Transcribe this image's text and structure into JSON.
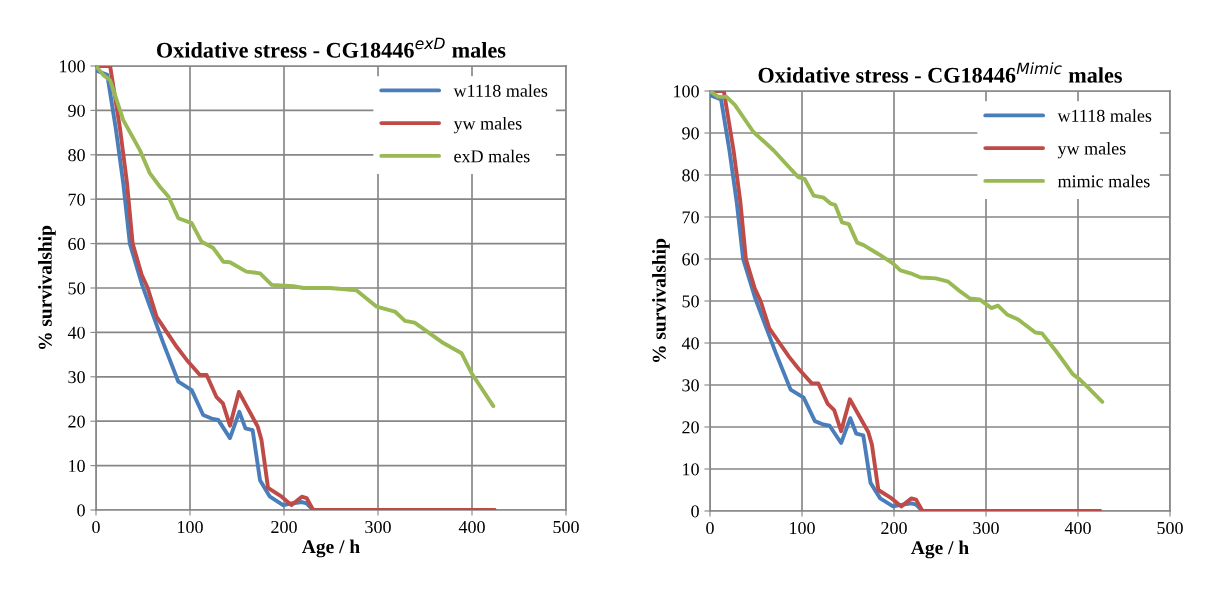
{
  "chart_data": [
    {
      "type": "line",
      "title": "Oxidative stress - CG18446$^{exD}$ males",
      "xlabel": "Age / h",
      "ylabel": "% survivalship",
      "xlim": [
        0,
        500
      ],
      "xticks": [
        0,
        100,
        200,
        300,
        400,
        500
      ],
      "ylim": [
        0,
        100
      ],
      "yticks": [
        0,
        10,
        20,
        30,
        40,
        50,
        60,
        70,
        80,
        90,
        100
      ],
      "grid": true,
      "legend": "top right",
      "line_style": "solid",
      "marker": "none",
      "series": [
        {
          "name": "w1118 males",
          "color": "#4a7ebb",
          "x": [
            0,
            12,
            21,
            29,
            36,
            48.6,
            57.4,
            71.6,
            87.6,
            101.8,
            114,
            123,
            130,
            142.5,
            152.5,
            159,
            166.6,
            174.5,
            185,
            199,
            206,
            219,
            224,
            231,
            424
          ],
          "values": [
            99,
            98,
            86,
            73.6,
            60,
            51,
            45.8,
            37.6,
            28.9,
            27,
            21.4,
            20.6,
            20.3,
            16.2,
            22.1,
            18.4,
            18,
            6.7,
            3,
            1.1,
            1.4,
            1.8,
            1.5,
            0,
            0
          ]
        },
        {
          "name": "yw males",
          "color": "#be4b48",
          "x": [
            0,
            15,
            25.5,
            33,
            39,
            48.6,
            55,
            64.5,
            86,
            96.5,
            110.6,
            117.7,
            128,
            135,
            142.5,
            152,
            172,
            176,
            183,
            197.5,
            208,
            219,
            224,
            231,
            424
          ],
          "values": [
            100,
            100,
            86,
            73.6,
            60,
            53,
            50,
            43.5,
            36.7,
            33.8,
            30.4,
            30.4,
            25.5,
            24,
            19,
            26.6,
            18.8,
            15.8,
            5,
            3,
            1.1,
            3,
            2.7,
            0,
            0
          ]
        },
        {
          "name": "exD males",
          "color": "#98b954",
          "x": [
            0,
            7.7,
            15,
            29,
            46.8,
            57.4,
            68,
            77,
            87.6,
            101.8,
            112.4,
            124.8,
            135.5,
            142.5,
            160,
            174.5,
            187,
            210,
            221,
            249,
            277,
            298.6,
            318,
            328.7,
            339,
            369.5,
            389,
            399.6,
            422.7
          ],
          "values": [
            100,
            98,
            96.8,
            87.8,
            81,
            75.8,
            72.8,
            70.6,
            65.7,
            64.6,
            60.4,
            59,
            55.9,
            55.8,
            53.7,
            53.3,
            50.7,
            50.4,
            50,
            50,
            49.5,
            45.8,
            44.7,
            42.6,
            42.2,
            37.6,
            35.3,
            30.8,
            23.4
          ]
        }
      ]
    },
    {
      "type": "line",
      "title": "Oxidative stress - CG18446$^{Mimic}$ males",
      "xlabel": "Age / h",
      "ylabel": "% survivalship",
      "xlim": [
        0,
        500
      ],
      "xticks": [
        0,
        100,
        200,
        300,
        400,
        500
      ],
      "ylim": [
        0,
        100
      ],
      "yticks": [
        0,
        10,
        20,
        30,
        40,
        50,
        60,
        70,
        80,
        90,
        100
      ],
      "grid": true,
      "legend": "top right",
      "line_style": "solid",
      "marker": "none",
      "series": [
        {
          "name": "w1118 males",
          "color": "#4a7ebb",
          "x": [
            0,
            12,
            21,
            29,
            36,
            48.6,
            57.4,
            71.6,
            87.6,
            101.8,
            114,
            123,
            130,
            142.5,
            152.5,
            159,
            166.6,
            174.5,
            185,
            199,
            206,
            219,
            224,
            231,
            424
          ],
          "values": [
            99,
            98,
            86,
            73.6,
            60,
            51,
            45.8,
            37.6,
            28.9,
            27,
            21.4,
            20.6,
            20.3,
            16.2,
            22.1,
            18.4,
            18,
            6.7,
            3,
            1.1,
            1.4,
            1.8,
            1.5,
            0,
            0
          ]
        },
        {
          "name": "yw males",
          "color": "#be4b48",
          "x": [
            0,
            15,
            25.5,
            33,
            39,
            48.6,
            55,
            64.5,
            86,
            96.5,
            110.6,
            117.7,
            128,
            135,
            142.5,
            152,
            172,
            176,
            183,
            197.5,
            208,
            219,
            224,
            231,
            424
          ],
          "values": [
            100,
            100,
            86,
            73.6,
            60,
            53,
            50,
            43.5,
            36.7,
            33.8,
            30.4,
            30.4,
            25.5,
            24,
            19,
            26.6,
            18.8,
            15.8,
            5,
            3,
            1.1,
            3,
            2.7,
            0,
            0
          ]
        },
        {
          "name": "mimic males",
          "color": "#98b954",
          "x": [
            0,
            9,
            18,
            27,
            47,
            69,
            87,
            96,
            103,
            112.7,
            123.6,
            131,
            136,
            143.6,
            150.9,
            160,
            167,
            182.9,
            198,
            207,
            218,
            229,
            245.5,
            259,
            270,
            282.6,
            293,
            306,
            313,
            322.8,
            335,
            353.6,
            360.9,
            376,
            394.3,
            401.5,
            411.9,
            426.4
          ],
          "values": [
            100,
            98.6,
            98.6,
            96.7,
            90.3,
            85.9,
            81.6,
            79.5,
            79,
            75.1,
            74.6,
            73.2,
            72.9,
            68.7,
            68.3,
            63.9,
            63.3,
            61.2,
            59.1,
            57.3,
            56.6,
            55.6,
            55.4,
            54.6,
            52.6,
            50.6,
            50.4,
            48.3,
            48.9,
            46.8,
            45.6,
            42.5,
            42.3,
            38.1,
            32.6,
            31.4,
            29.2,
            26
          ]
        }
      ]
    }
  ]
}
